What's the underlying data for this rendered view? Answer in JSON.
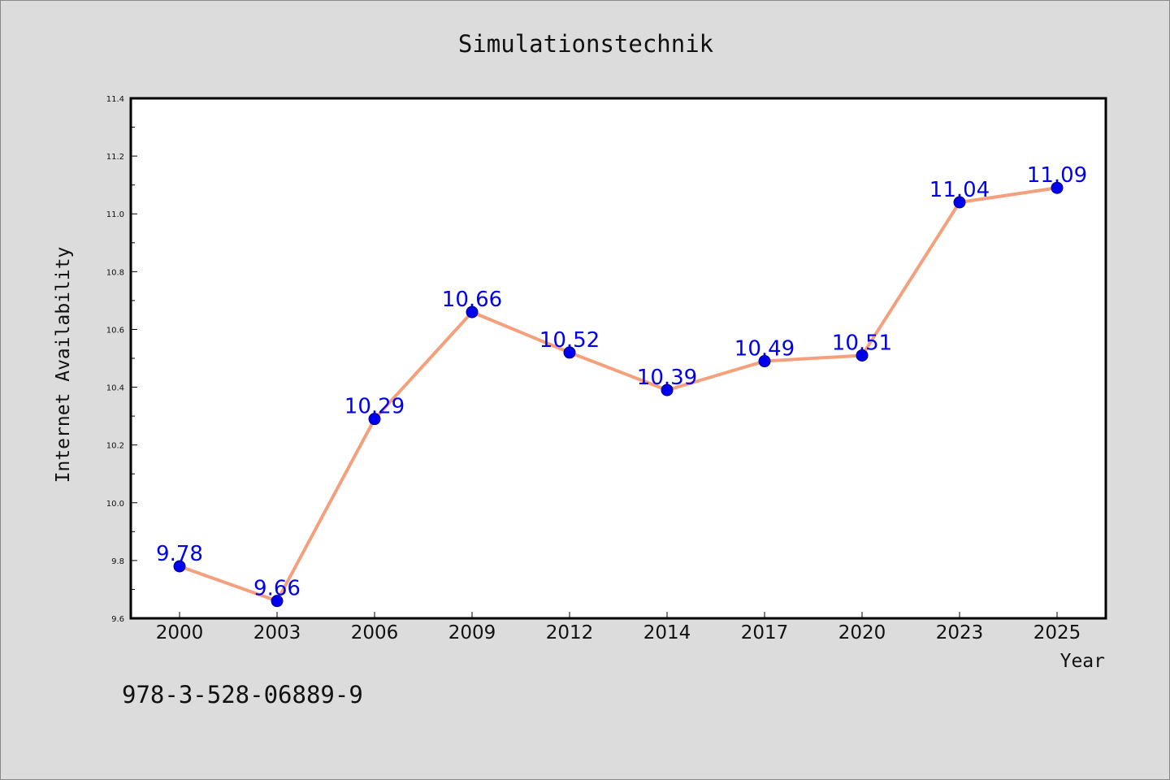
{
  "chart_data": {
    "type": "line",
    "title": "Simulationstechnik",
    "xlabel": "Year",
    "ylabel": "Internet Availability",
    "categories": [
      "2000",
      "2003",
      "2006",
      "2009",
      "2012",
      "2014",
      "2017",
      "2020",
      "2023",
      "2025"
    ],
    "series": [
      {
        "values": [
          9.78,
          9.66,
          10.29,
          10.66,
          10.52,
          10.39,
          10.49,
          10.51,
          11.04,
          11.09
        ],
        "labels": [
          "9.78",
          "9.66",
          "10.29",
          "10.66",
          "10.52",
          "10.39",
          "10.49",
          "10.51",
          "11.04",
          "11.09"
        ]
      }
    ],
    "ylim": [
      9.6,
      11.4
    ],
    "yticks": [
      "9.6",
      "9.8",
      "10.0",
      "10.2",
      "10.4",
      "10.6",
      "10.8",
      "11.0",
      "11.2",
      "11.4"
    ],
    "grid": false,
    "legend": "none"
  },
  "footer": {
    "isbn": "978-3-528-06889-9"
  },
  "colors": {
    "background": "#dcdcdc",
    "plot_background": "#ffffff",
    "line": "#f4a07c",
    "marker": "#0000ee",
    "data_label": "#0000ee",
    "axis": "#000000"
  }
}
